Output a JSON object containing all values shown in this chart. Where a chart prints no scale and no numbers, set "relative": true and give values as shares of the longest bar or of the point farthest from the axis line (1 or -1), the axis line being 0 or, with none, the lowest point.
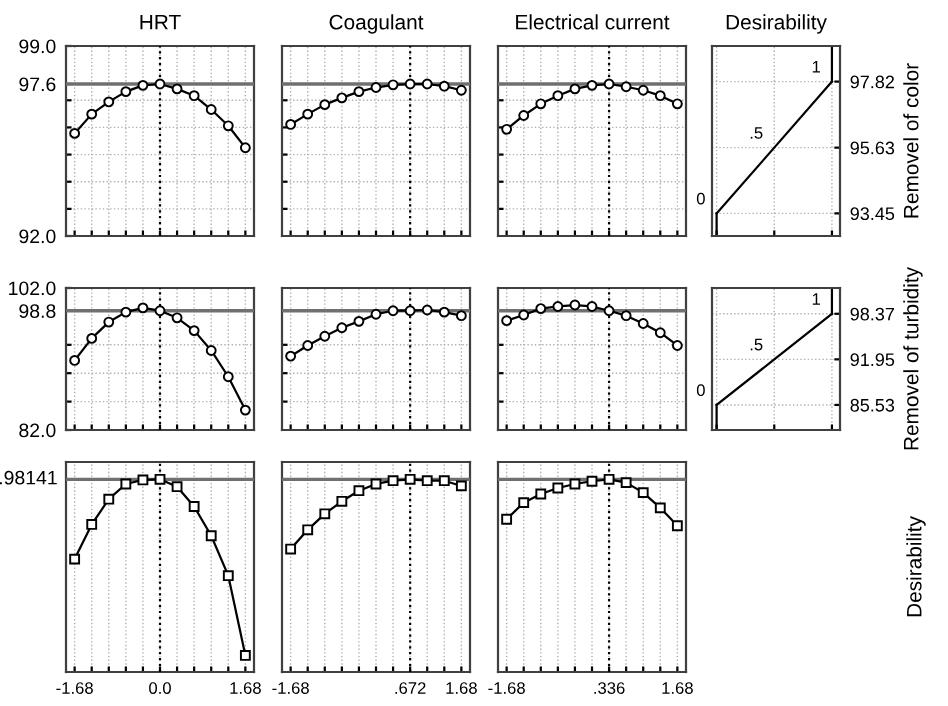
{
  "chart_data": [
    {
      "type": "line",
      "title": "HRT",
      "x": [
        -1.68,
        -1.344,
        -1.008,
        -0.672,
        -0.336,
        0.0,
        0.336,
        0.672,
        1.008,
        1.344,
        1.68
      ],
      "series": [
        {
          "color": "#000000",
          "values": [
            95.78,
            96.49,
            96.94,
            97.32,
            97.55,
            97.6,
            97.42,
            97.17,
            96.66,
            96.06,
            95.25
          ]
        }
      ],
      "marker": "circle",
      "xlim": [
        -1.85,
        1.85
      ],
      "xticks": [
        {
          "value": -1.68,
          "label": null
        },
        {
          "value": -1.344,
          "label": null
        },
        {
          "value": -1.008,
          "label": null
        },
        {
          "value": -0.672,
          "label": null
        },
        {
          "value": -0.336,
          "label": null
        },
        {
          "value": 0.0,
          "label": null
        },
        {
          "value": 0.336,
          "label": null
        },
        {
          "value": 0.672,
          "label": null
        },
        {
          "value": 1.008,
          "label": null
        },
        {
          "value": 1.344,
          "label": null
        },
        {
          "value": 1.68,
          "label": null
        }
      ],
      "ylim": [
        92.0,
        99.0
      ],
      "yticks": [
        {
          "value": 92.0,
          "label": "92.0"
        },
        {
          "value": 93,
          "label": null
        },
        {
          "value": 94,
          "label": null
        },
        {
          "value": 95,
          "label": null
        },
        {
          "value": 96,
          "label": null
        },
        {
          "value": 97,
          "label": null
        },
        {
          "value": 97.6,
          "label": "97.6"
        },
        {
          "value": 99.0,
          "label": "99.0"
        }
      ],
      "ref_lines": [
        {
          "axis": "x",
          "value": 0.0,
          "color": "#000000",
          "line_style": "dotted"
        },
        {
          "axis": "y",
          "value": 97.6,
          "color": "#707070",
          "line_style": "solid"
        }
      ],
      "grid": true,
      "tick_labels": "y"
    },
    {
      "type": "line",
      "title": "Coagulant",
      "x": [
        -1.68,
        -1.344,
        -1.008,
        -0.672,
        -0.336,
        0.0,
        0.336,
        0.672,
        1.008,
        1.344,
        1.68
      ],
      "series": [
        {
          "color": "#000000",
          "values": [
            96.11,
            96.49,
            96.84,
            97.09,
            97.32,
            97.47,
            97.57,
            97.6,
            97.6,
            97.52,
            97.37
          ]
        }
      ],
      "marker": "circle",
      "xlim": [
        -1.85,
        1.85
      ],
      "xticks": [
        {
          "value": -1.68,
          "label": null
        },
        {
          "value": -1.344,
          "label": null
        },
        {
          "value": -1.008,
          "label": null
        },
        {
          "value": -0.672,
          "label": null
        },
        {
          "value": -0.336,
          "label": null
        },
        {
          "value": 0.0,
          "label": null
        },
        {
          "value": 0.336,
          "label": null
        },
        {
          "value": 0.672,
          "label": null
        },
        {
          "value": 1.008,
          "label": null
        },
        {
          "value": 1.344,
          "label": null
        },
        {
          "value": 1.68,
          "label": null
        }
      ],
      "ylim": [
        92.0,
        99.0
      ],
      "yticks": [
        {
          "value": 93,
          "label": null
        },
        {
          "value": 94,
          "label": null
        },
        {
          "value": 95,
          "label": null
        },
        {
          "value": 96,
          "label": null
        },
        {
          "value": 97,
          "label": null
        },
        {
          "value": 97.6,
          "label": null
        }
      ],
      "ref_lines": [
        {
          "axis": "x",
          "value": 0.672,
          "color": "#000000",
          "line_style": "dotted"
        },
        {
          "axis": "y",
          "value": 97.6,
          "color": "#707070",
          "line_style": "solid"
        }
      ],
      "grid": true,
      "tick_labels": false
    },
    {
      "type": "line",
      "title": "Electrical current",
      "x": [
        -1.68,
        -1.344,
        -1.008,
        -0.672,
        -0.336,
        0.0,
        0.336,
        0.672,
        1.008,
        1.344,
        1.68
      ],
      "series": [
        {
          "color": "#000000",
          "values": [
            95.93,
            96.44,
            96.87,
            97.17,
            97.42,
            97.55,
            97.6,
            97.5,
            97.37,
            97.17,
            96.87
          ]
        }
      ],
      "marker": "circle",
      "xlim": [
        -1.85,
        1.85
      ],
      "xticks": [
        {
          "value": -1.68,
          "label": null
        },
        {
          "value": -1.344,
          "label": null
        },
        {
          "value": -1.008,
          "label": null
        },
        {
          "value": -0.672,
          "label": null
        },
        {
          "value": -0.336,
          "label": null
        },
        {
          "value": 0.0,
          "label": null
        },
        {
          "value": 0.336,
          "label": null
        },
        {
          "value": 0.672,
          "label": null
        },
        {
          "value": 1.008,
          "label": null
        },
        {
          "value": 1.344,
          "label": null
        },
        {
          "value": 1.68,
          "label": null
        }
      ],
      "ylim": [
        92.0,
        99.0
      ],
      "yticks": [
        {
          "value": 93,
          "label": null
        },
        {
          "value": 94,
          "label": null
        },
        {
          "value": 95,
          "label": null
        },
        {
          "value": 96,
          "label": null
        },
        {
          "value": 97,
          "label": null
        },
        {
          "value": 97.6,
          "label": null
        }
      ],
      "ref_lines": [
        {
          "axis": "x",
          "value": 0.336,
          "color": "#000000",
          "line_style": "dotted"
        },
        {
          "axis": "y",
          "value": 97.6,
          "color": "#707070",
          "line_style": "solid"
        }
      ],
      "grid": true,
      "tick_labels": false
    },
    {
      "type": "line",
      "title": "Desirability",
      "ylabel": "Removel of color",
      "categories": [
        null,
        null,
        null
      ],
      "series": [
        {
          "color": "#000000",
          "values": [
            93.45,
            95.63,
            97.82
          ]
        }
      ],
      "marker": "none",
      "ylim": [
        92.7,
        99.0
      ],
      "yticks": [
        93.45,
        95.63,
        97.82
      ],
      "annotations": [
        "0",
        ".5",
        "1"
      ],
      "grid": true,
      "tick_labels": "y"
    },
    {
      "type": "line",
      "x": [
        -1.68,
        -1.344,
        -1.008,
        -0.672,
        -0.336,
        0.0,
        0.336,
        0.672,
        1.008,
        1.344,
        1.68
      ],
      "series": [
        {
          "color": "#000000",
          "values": [
            91.8,
            94.9,
            97.2,
            98.6,
            99.2,
            98.8,
            97.8,
            96.0,
            93.2,
            89.5,
            84.8
          ]
        }
      ],
      "marker": "circle",
      "xlim": [
        -1.85,
        1.85
      ],
      "xticks": [
        {
          "value": -1.68,
          "label": null
        },
        {
          "value": -1.344,
          "label": null
        },
        {
          "value": -1.008,
          "label": null
        },
        {
          "value": -0.672,
          "label": null
        },
        {
          "value": -0.336,
          "label": null
        },
        {
          "value": 0.0,
          "label": null
        },
        {
          "value": 0.336,
          "label": null
        },
        {
          "value": 0.672,
          "label": null
        },
        {
          "value": 1.008,
          "label": null
        },
        {
          "value": 1.344,
          "label": null
        },
        {
          "value": 1.68,
          "label": null
        }
      ],
      "ylim": [
        82.0,
        102.0
      ],
      "yticks": [
        {
          "value": 82.0,
          "label": "82.0"
        },
        {
          "value": 86,
          "label": null
        },
        {
          "value": 90,
          "label": null
        },
        {
          "value": 94,
          "label": null
        },
        {
          "value": 98.8,
          "label": "98.8"
        },
        {
          "value": 102.0,
          "label": "102.0"
        }
      ],
      "ref_lines": [
        {
          "axis": "x",
          "value": 0.0,
          "color": "#000000",
          "line_style": "dotted"
        },
        {
          "axis": "y",
          "value": 98.8,
          "color": "#707070",
          "line_style": "solid"
        }
      ],
      "grid": true,
      "tick_labels": "y"
    },
    {
      "type": "line",
      "x": [
        -1.68,
        -1.344,
        -1.008,
        -0.672,
        -0.336,
        0.0,
        0.336,
        0.672,
        1.008,
        1.344,
        1.68
      ],
      "series": [
        {
          "color": "#000000",
          "values": [
            92.4,
            93.9,
            95.2,
            96.4,
            97.3,
            98.3,
            98.8,
            98.8,
            98.9,
            98.6,
            98.1
          ]
        }
      ],
      "marker": "circle",
      "xlim": [
        -1.85,
        1.85
      ],
      "xticks": [
        {
          "value": -1.68,
          "label": null
        },
        {
          "value": -1.344,
          "label": null
        },
        {
          "value": -1.008,
          "label": null
        },
        {
          "value": -0.672,
          "label": null
        },
        {
          "value": -0.336,
          "label": null
        },
        {
          "value": 0.0,
          "label": null
        },
        {
          "value": 0.336,
          "label": null
        },
        {
          "value": 0.672,
          "label": null
        },
        {
          "value": 1.008,
          "label": null
        },
        {
          "value": 1.344,
          "label": null
        },
        {
          "value": 1.68,
          "label": null
        }
      ],
      "ylim": [
        82.0,
        102.0
      ],
      "yticks": [
        {
          "value": 86,
          "label": null
        },
        {
          "value": 90,
          "label": null
        },
        {
          "value": 94,
          "label": null
        },
        {
          "value": 98.8,
          "label": null
        }
      ],
      "ref_lines": [
        {
          "axis": "x",
          "value": 0.672,
          "color": "#000000",
          "line_style": "dotted"
        },
        {
          "axis": "y",
          "value": 98.8,
          "color": "#707070",
          "line_style": "solid"
        }
      ],
      "grid": true,
      "tick_labels": false
    },
    {
      "type": "line",
      "x": [
        -1.68,
        -1.344,
        -1.008,
        -0.672,
        -0.336,
        0.0,
        0.336,
        0.672,
        1.008,
        1.344,
        1.68
      ],
      "series": [
        {
          "color": "#000000",
          "values": [
            97.4,
            98.2,
            99.1,
            99.4,
            99.6,
            99.4,
            98.8,
            98.1,
            97.0,
            95.7,
            93.9
          ]
        }
      ],
      "marker": "circle",
      "xlim": [
        -1.85,
        1.85
      ],
      "xticks": [
        {
          "value": -1.68,
          "label": null
        },
        {
          "value": -1.344,
          "label": null
        },
        {
          "value": -1.008,
          "label": null
        },
        {
          "value": -0.672,
          "label": null
        },
        {
          "value": -0.336,
          "label": null
        },
        {
          "value": 0.0,
          "label": null
        },
        {
          "value": 0.336,
          "label": null
        },
        {
          "value": 0.672,
          "label": null
        },
        {
          "value": 1.008,
          "label": null
        },
        {
          "value": 1.344,
          "label": null
        },
        {
          "value": 1.68,
          "label": null
        }
      ],
      "ylim": [
        82.0,
        102.0
      ],
      "yticks": [
        {
          "value": 86,
          "label": null
        },
        {
          "value": 90,
          "label": null
        },
        {
          "value": 94,
          "label": null
        },
        {
          "value": 98.8,
          "label": null
        }
      ],
      "ref_lines": [
        {
          "axis": "x",
          "value": 0.336,
          "color": "#000000",
          "line_style": "dotted"
        },
        {
          "axis": "y",
          "value": 98.8,
          "color": "#707070",
          "line_style": "solid"
        }
      ],
      "grid": true,
      "tick_labels": false
    },
    {
      "type": "line",
      "ylabel": "Removel of turbidity",
      "categories": [
        null,
        null,
        null
      ],
      "series": [
        {
          "color": "#000000",
          "values": [
            85.53,
            91.95,
            98.37
          ]
        }
      ],
      "marker": "none",
      "ylim": [
        82.0,
        102.0
      ],
      "yticks": [
        85.53,
        91.95,
        98.37
      ],
      "annotations": [
        "0",
        ".5",
        "1"
      ],
      "grid": true,
      "tick_labels": "y"
    },
    {
      "type": "line",
      "relative": true,
      "x": [
        -1.68,
        -1.344,
        -1.008,
        -0.672,
        -0.336,
        0.0,
        0.336,
        0.672,
        1.008,
        1.344,
        1.68
      ],
      "series": [
        {
          "color": "#000000",
          "values": [
            0.586,
            0.766,
            0.897,
            0.976,
            0.997,
            1.0,
            0.962,
            0.859,
            0.707,
            0.5,
            0.086
          ]
        }
      ],
      "marker": "square",
      "xlim": [
        -1.85,
        1.85
      ],
      "xticks": [
        {
          "value": -1.68,
          "label": "-1.68"
        },
        {
          "value": -1.344,
          "label": null
        },
        {
          "value": -1.008,
          "label": null
        },
        {
          "value": -0.672,
          "label": null
        },
        {
          "value": -0.336,
          "label": null
        },
        {
          "value": 0.0,
          "label": "0.0"
        },
        {
          "value": 0.336,
          "label": null
        },
        {
          "value": 0.672,
          "label": null
        },
        {
          "value": 1.008,
          "label": null
        },
        {
          "value": 1.344,
          "label": null
        },
        {
          "value": 1.68,
          "label": "1.68"
        }
      ],
      "ref_lines": [
        {
          "axis": "x",
          "value": 0.0,
          "color": "#000000",
          "line_style": "dotted"
        },
        {
          "axis": "y",
          "value": 1.0,
          "color": "#707070",
          "line_style": "solid"
        }
      ],
      "annotations": [
        ".98141"
      ],
      "grid": "x",
      "tick_labels": "x"
    },
    {
      "type": "line",
      "relative": true,
      "x": [
        -1.68,
        -1.344,
        -1.008,
        -0.672,
        -0.336,
        0.0,
        0.336,
        0.672,
        1.008,
        1.344,
        1.68
      ],
      "series": [
        {
          "color": "#000000",
          "values": [
            0.638,
            0.738,
            0.821,
            0.886,
            0.941,
            0.976,
            0.993,
            1.0,
            0.993,
            0.993,
            0.966
          ]
        }
      ],
      "marker": "square",
      "xlim": [
        -1.85,
        1.85
      ],
      "xticks": [
        {
          "value": -1.68,
          "label": "-1.68"
        },
        {
          "value": -1.344,
          "label": null
        },
        {
          "value": -1.008,
          "label": null
        },
        {
          "value": -0.672,
          "label": null
        },
        {
          "value": -0.336,
          "label": null
        },
        {
          "value": 0.0,
          "label": null
        },
        {
          "value": 0.336,
          "label": null
        },
        {
          "value": 0.672,
          "label": ".672"
        },
        {
          "value": 1.008,
          "label": null
        },
        {
          "value": 1.344,
          "label": null
        },
        {
          "value": 1.68,
          "label": "1.68"
        }
      ],
      "ref_lines": [
        {
          "axis": "x",
          "value": 0.672,
          "color": "#000000",
          "line_style": "dotted"
        },
        {
          "axis": "y",
          "value": 1.0,
          "color": "#707070",
          "line_style": "solid"
        }
      ],
      "grid": "x",
      "tick_labels": "x"
    },
    {
      "type": "line",
      "relative": true,
      "y2label": "Desirability",
      "x": [
        -1.68,
        -1.344,
        -1.008,
        -0.672,
        -0.336,
        0.0,
        0.336,
        0.672,
        1.008,
        1.344,
        1.68
      ],
      "series": [
        {
          "color": "#000000",
          "values": [
            0.793,
            0.879,
            0.924,
            0.955,
            0.976,
            0.99,
            1.0,
            0.983,
            0.931,
            0.852,
            0.759
          ]
        }
      ],
      "marker": "square",
      "xlim": [
        -1.85,
        1.85
      ],
      "xticks": [
        {
          "value": -1.68,
          "label": "-1.68"
        },
        {
          "value": -1.344,
          "label": null
        },
        {
          "value": -1.008,
          "label": null
        },
        {
          "value": -0.672,
          "label": null
        },
        {
          "value": -0.336,
          "label": null
        },
        {
          "value": 0.0,
          "label": null
        },
        {
          "value": 0.336,
          "label": ".336"
        },
        {
          "value": 0.672,
          "label": null
        },
        {
          "value": 1.008,
          "label": null
        },
        {
          "value": 1.344,
          "label": null
        },
        {
          "value": 1.68,
          "label": "1.68"
        }
      ],
      "ref_lines": [
        {
          "axis": "x",
          "value": 0.336,
          "color": "#000000",
          "line_style": "dotted"
        },
        {
          "axis": "y",
          "value": 1.0,
          "color": "#707070",
          "line_style": "solid"
        }
      ],
      "grid": "x",
      "tick_labels": "x"
    }
  ]
}
